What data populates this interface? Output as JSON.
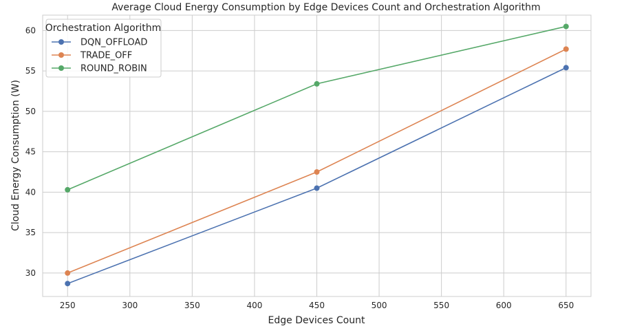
{
  "chart_data": {
    "type": "line",
    "title": "Average Cloud Energy Consumption by Edge Devices Count and Orchestration Algorithm",
    "xlabel": "Edge Devices Count",
    "ylabel": "Cloud Energy Consumption (W)",
    "x": [
      250,
      450,
      650
    ],
    "xlim": [
      230,
      670
    ],
    "ylim": [
      27.1,
      61.9
    ],
    "xticks": [
      250,
      300,
      350,
      400,
      450,
      500,
      550,
      600,
      650
    ],
    "yticks": [
      30,
      35,
      40,
      45,
      50,
      55,
      60
    ],
    "grid": true,
    "legend": {
      "title": "Orchestration Algorithm",
      "placement": "top-left"
    },
    "series": [
      {
        "name": "DQN_OFFLOAD",
        "color": "#4c72b0",
        "values": [
          28.7,
          40.5,
          55.4
        ]
      },
      {
        "name": "TRADE_OFF",
        "color": "#dd8452",
        "values": [
          30.0,
          42.5,
          57.7
        ]
      },
      {
        "name": "ROUND_ROBIN",
        "color": "#55a868",
        "values": [
          40.3,
          53.4,
          60.5
        ]
      }
    ]
  }
}
